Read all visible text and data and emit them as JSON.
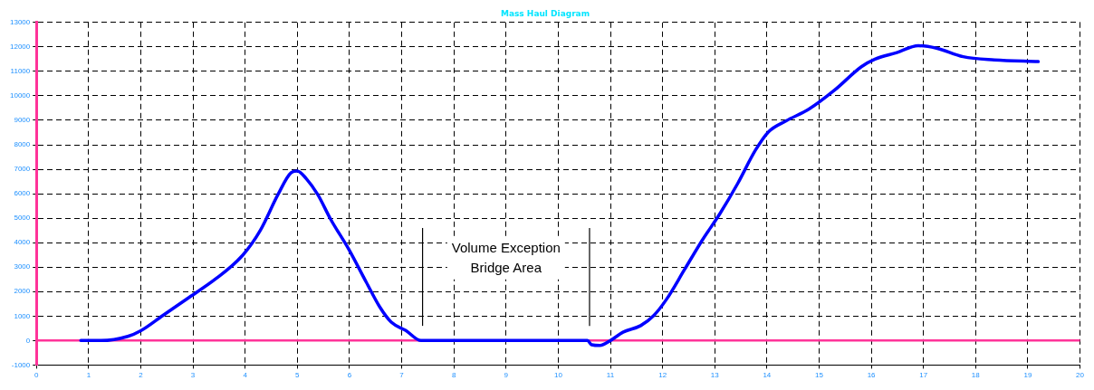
{
  "chart_data": {
    "type": "line",
    "title": "Mass Haul Diagram",
    "xlim": [
      0,
      20
    ],
    "xticks": [
      0,
      1,
      2,
      3,
      4,
      5,
      6,
      7,
      8,
      9,
      10,
      11,
      12,
      13,
      14,
      15,
      16,
      17,
      18,
      19,
      20
    ],
    "ylim": [
      -1000,
      13000
    ],
    "yticks": [
      -1000,
      0,
      1000,
      2000,
      3000,
      4000,
      5000,
      6000,
      7000,
      8000,
      9000,
      10000,
      11000,
      12000,
      13000
    ],
    "grid": true,
    "legend": false,
    "marker": "none",
    "line_style": "solid",
    "series": [
      {
        "color": "#0000ff",
        "x": [
          0.85,
          1.24,
          1.75,
          2.0,
          2.42,
          2.93,
          3.44,
          3.95,
          4.29,
          4.63,
          4.88,
          5.0,
          5.17,
          5.39,
          5.64,
          5.98,
          6.32,
          6.58,
          6.8,
          7.08,
          7.37,
          10.56,
          10.64,
          10.8,
          11.0,
          11.24,
          11.58,
          11.83,
          12.08,
          12.42,
          12.76,
          13.1,
          13.44,
          13.78,
          14.03,
          14.37,
          14.8,
          15.3,
          15.81,
          16.07,
          16.49,
          16.9,
          17.25,
          17.76,
          18.36,
          19.2
        ],
        "values": [
          0,
          0,
          170,
          400,
          1020,
          1770,
          2530,
          3480,
          4500,
          5970,
          6860,
          6930,
          6620,
          5970,
          4950,
          3750,
          2390,
          1370,
          750,
          410,
          0,
          0,
          -170,
          -200,
          0,
          340,
          610,
          1020,
          1700,
          2900,
          4100,
          5190,
          6420,
          7780,
          8530,
          8980,
          9450,
          10240,
          11190,
          11500,
          11770,
          12050,
          11950,
          11600,
          11470,
          11400
        ]
      }
    ],
    "ref_lines": [
      {
        "axis": "y",
        "value": 0,
        "color": "#ff3399"
      },
      {
        "axis": "x",
        "value": 7.4,
        "color": "#000000"
      },
      {
        "axis": "x",
        "value": 10.6,
        "color": "#000000"
      }
    ],
    "annotations": [
      "Volume Exception\nBridge Area"
    ]
  }
}
